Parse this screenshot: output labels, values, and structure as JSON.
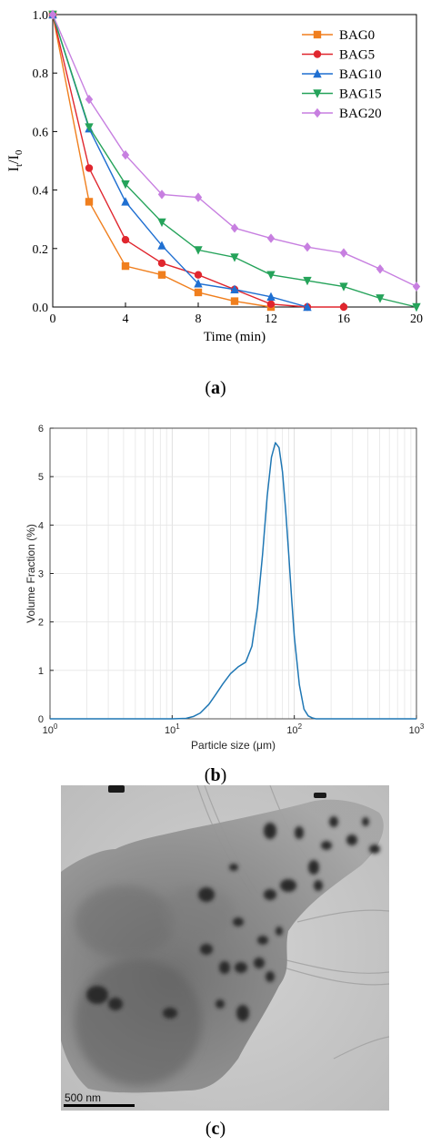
{
  "chart_data": [
    {
      "type": "line",
      "panel": "a",
      "xlabel": "Time (min)",
      "ylabel_main": "I",
      "ylabel_sub1": "t",
      "ylabel_mid": "/I",
      "ylabel_sub2": "0",
      "xlim": [
        0,
        20
      ],
      "ylim": [
        0,
        1.0
      ],
      "xticks": [
        "0",
        "4",
        "8",
        "12",
        "16",
        "20"
      ],
      "yticks": [
        "0.0",
        "0.2",
        "0.4",
        "0.6",
        "0.8",
        "1.0"
      ],
      "legend_position": "top-right",
      "x": [
        0,
        2,
        4,
        6,
        8,
        10,
        12,
        14,
        16,
        18,
        20
      ],
      "series": [
        {
          "name": "BAG0",
          "color": "#f07f1e",
          "marker": "square",
          "x": [
            0,
            2,
            4,
            6,
            8,
            10,
            12
          ],
          "values": [
            1.0,
            0.36,
            0.14,
            0.11,
            0.05,
            0.02,
            0.0
          ]
        },
        {
          "name": "BAG5",
          "color": "#e0262e",
          "marker": "circle",
          "x": [
            0,
            2,
            4,
            6,
            8,
            10,
            12,
            14,
            16
          ],
          "values": [
            1.0,
            0.475,
            0.23,
            0.15,
            0.11,
            0.06,
            0.01,
            0.0,
            0.0
          ]
        },
        {
          "name": "BAG10",
          "color": "#1f6fd1",
          "marker": "triangle-up",
          "x": [
            0,
            2,
            4,
            6,
            8,
            10,
            12,
            14
          ],
          "values": [
            1.0,
            0.61,
            0.36,
            0.21,
            0.08,
            0.06,
            0.035,
            0.0
          ]
        },
        {
          "name": "BAG15",
          "color": "#25a35a",
          "marker": "triangle-down",
          "x": [
            0,
            2,
            4,
            6,
            8,
            10,
            12,
            14,
            16,
            18,
            20
          ],
          "values": [
            1.0,
            0.615,
            0.42,
            0.29,
            0.195,
            0.17,
            0.11,
            0.09,
            0.07,
            0.03,
            0.0
          ]
        },
        {
          "name": "BAG20",
          "color": "#c77fe0",
          "marker": "diamond",
          "x": [
            0,
            2,
            4,
            6,
            8,
            10,
            12,
            14,
            16,
            18,
            20
          ],
          "values": [
            1.0,
            0.71,
            0.52,
            0.385,
            0.375,
            0.27,
            0.235,
            0.205,
            0.185,
            0.13,
            0.07
          ]
        }
      ]
    },
    {
      "type": "line",
      "panel": "b",
      "xlabel": "Particle size (μm)",
      "ylabel": "Volume Fraction (%)",
      "xscale": "log",
      "xlim": [
        1,
        1000
      ],
      "ylim": [
        0,
        6
      ],
      "xticks": [
        {
          "base": "10",
          "exp": "0"
        },
        {
          "base": "10",
          "exp": "1"
        },
        {
          "base": "10",
          "exp": "2"
        },
        {
          "base": "10",
          "exp": "3"
        }
      ],
      "yticks": [
        "0",
        "1",
        "2",
        "3",
        "4",
        "5",
        "6"
      ],
      "grid": true,
      "color": "#1f77b4",
      "x": [
        10,
        13,
        15,
        17,
        20,
        23,
        26,
        30,
        35,
        40,
        45,
        50,
        55,
        60,
        65,
        70,
        75,
        80,
        85,
        90,
        95,
        100,
        110,
        120,
        130,
        140,
        150,
        1000
      ],
      "values": [
        0,
        0.01,
        0.05,
        0.12,
        0.3,
        0.52,
        0.72,
        0.93,
        1.08,
        1.17,
        1.5,
        2.3,
        3.4,
        4.6,
        5.4,
        5.7,
        5.6,
        5.1,
        4.3,
        3.4,
        2.5,
        1.7,
        0.7,
        0.2,
        0.06,
        0.02,
        0,
        0
      ]
    }
  ],
  "captions": {
    "a": "a",
    "b": "b",
    "c": "c"
  },
  "tem_image": {
    "scale_bar_label": "500 nm"
  }
}
